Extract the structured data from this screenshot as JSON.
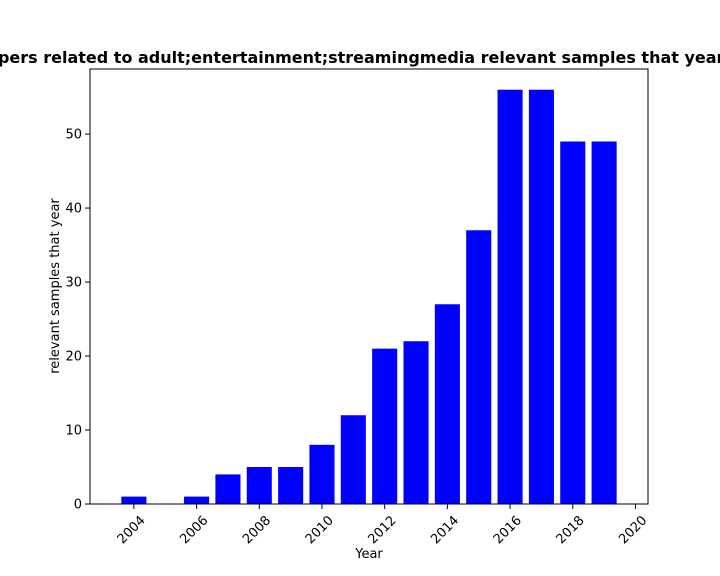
{
  "chart_data": {
    "type": "bar",
    "title": "Number of papers related to adult;entertainment;streamingmedia relevant samples that year in publications",
    "xlabel": "Year",
    "ylabel": "relevant samples that year",
    "x": [
      2004,
      2006,
      2007,
      2008,
      2009,
      2010,
      2011,
      2012,
      2013,
      2014,
      2015,
      2016,
      2017,
      2018,
      2019
    ],
    "values": [
      1,
      1,
      4,
      5,
      5,
      8,
      12,
      21,
      22,
      27,
      37,
      56,
      56,
      49,
      49
    ],
    "xlim": [
      2002.6,
      2020.4
    ],
    "ylim": [
      0,
      58.8
    ],
    "xticks": [
      2004,
      2006,
      2008,
      2010,
      2012,
      2014,
      2016,
      2018,
      2020
    ],
    "yticks": [
      0,
      10,
      20,
      30,
      40,
      50
    ],
    "bar_color": "#0000ff",
    "grid": false,
    "legend": "none"
  }
}
